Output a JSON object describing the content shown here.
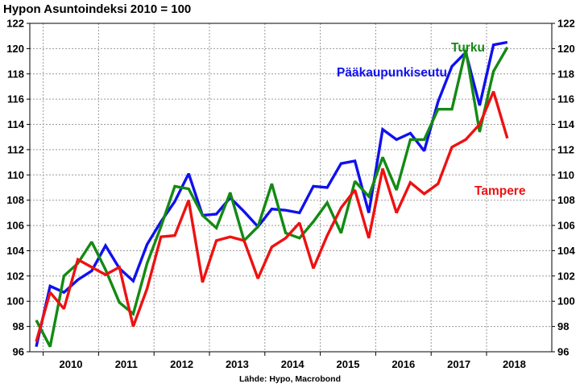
{
  "chart_data": {
    "type": "line",
    "title": "Hypon Asuntoindeksi 2010 = 100",
    "source": "Lähde: Hypo, Macrobond",
    "ylim": [
      96,
      122
    ],
    "yticks": [
      "96",
      "98",
      "100",
      "102",
      "104",
      "106",
      "108",
      "110",
      "112",
      "114",
      "116",
      "118",
      "120",
      "122"
    ],
    "xticks": [
      "2010",
      "2011",
      "2012",
      "2013",
      "2014",
      "2015",
      "2016",
      "2017",
      "2018"
    ],
    "grid": true,
    "x": [
      "2009Q4",
      "2010Q1",
      "2010Q2",
      "2010Q3",
      "2010Q4",
      "2011Q1",
      "2011Q2",
      "2011Q3",
      "2011Q4",
      "2012Q1",
      "2012Q2",
      "2012Q3",
      "2012Q4",
      "2013Q1",
      "2013Q2",
      "2013Q3",
      "2013Q4",
      "2014Q1",
      "2014Q2",
      "2014Q3",
      "2014Q4",
      "2015Q1",
      "2015Q2",
      "2015Q3",
      "2015Q4",
      "2016Q1",
      "2016Q2",
      "2016Q3",
      "2016Q4",
      "2017Q1",
      "2017Q2",
      "2017Q3",
      "2017Q4",
      "2018Q1",
      "2018Q2"
    ],
    "series": [
      {
        "name": "Pääkaupunkiseutu",
        "color": "#1010ee",
        "values": [
          96.4,
          101.2,
          100.7,
          101.7,
          102.4,
          104.4,
          102.6,
          101.6,
          104.5,
          106.3,
          107.9,
          110.1,
          106.8,
          106.9,
          108.2,
          107.1,
          105.9,
          107.3,
          107.2,
          107.0,
          109.1,
          109.0,
          110.9,
          111.1,
          107.0,
          113.6,
          112.8,
          113.3,
          111.9,
          115.8,
          118.6,
          119.7,
          115.5,
          120.3,
          120.5
        ]
      },
      {
        "name": "Turku",
        "color": "#138a13",
        "values": [
          98.5,
          96.4,
          102.0,
          103.0,
          104.7,
          102.5,
          99.9,
          99.0,
          103.0,
          105.9,
          109.1,
          108.9,
          106.8,
          105.8,
          108.6,
          104.8,
          105.9,
          109.3,
          105.4,
          105.0,
          106.3,
          107.8,
          105.4,
          109.5,
          108.3,
          111.4,
          108.8,
          112.8,
          112.8,
          115.2,
          115.2,
          119.9,
          113.4,
          118.2,
          120.1
        ]
      },
      {
        "name": "Tampere",
        "color": "#ee1111",
        "values": [
          96.8,
          100.7,
          99.4,
          103.3,
          102.7,
          102.1,
          102.7,
          98.0,
          101.0,
          105.1,
          105.2,
          108.0,
          101.5,
          104.8,
          105.1,
          104.8,
          101.8,
          104.3,
          105.0,
          106.2,
          102.6,
          105.2,
          107.4,
          108.8,
          105.0,
          110.5,
          107.0,
          109.4,
          108.5,
          109.3,
          112.2,
          112.8,
          114.0,
          116.6,
          112.9
        ]
      }
    ]
  }
}
